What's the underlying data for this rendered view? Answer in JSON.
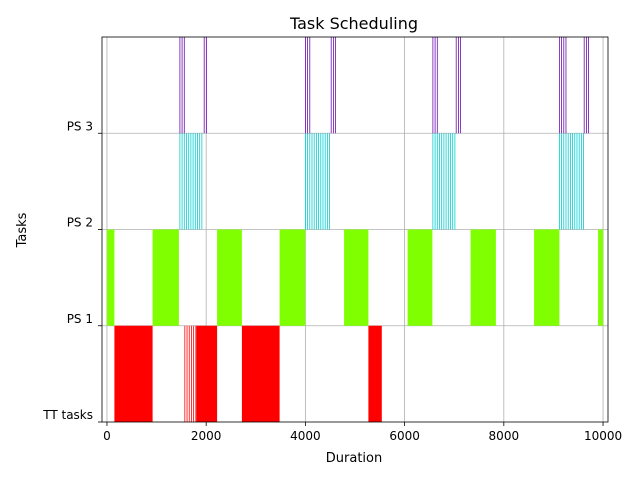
{
  "chart_data": {
    "type": "gantt",
    "title": "Task Scheduling",
    "xlabel": "Duration",
    "ylabel": "Tasks",
    "xlim": [
      -100,
      10100
    ],
    "x_ticks": [
      0,
      2000,
      4000,
      6000,
      8000,
      10000
    ],
    "x_tick_labels": [
      "0",
      "2000",
      "4000",
      "6000",
      "8000",
      "10000"
    ],
    "grid": true,
    "rows": [
      {
        "label": "TT tasks",
        "color": "#ff0000",
        "segments": [
          [
            150,
            920
          ],
          [
            1570,
            1800
          ],
          [
            1800,
            2220
          ],
          [
            2720,
            3480
          ],
          [
            5270,
            5540
          ]
        ],
        "hatched": [
          1570,
          1820
        ]
      },
      {
        "label": "PS 1",
        "color": "#7fff00",
        "segments": [
          [
            0,
            150
          ],
          [
            920,
            1450
          ],
          [
            2220,
            2720
          ],
          [
            3480,
            4000
          ],
          [
            4780,
            5270
          ],
          [
            6060,
            6560
          ],
          [
            7330,
            7840
          ],
          [
            8610,
            9120
          ],
          [
            9900,
            10000
          ]
        ]
      },
      {
        "label": "PS 2",
        "color": "#00ced1",
        "segments": [
          [
            1470,
            1930
          ],
          [
            4000,
            4500
          ],
          [
            6570,
            7040
          ],
          [
            9120,
            9630
          ]
        ],
        "hatched_all": true
      },
      {
        "label": "PS 3",
        "color": "#6a0dad",
        "segments": [
          [
            1470,
            1560
          ],
          [
            1960,
            2040
          ],
          [
            4000,
            4090
          ],
          [
            4520,
            4620
          ],
          [
            6570,
            6660
          ],
          [
            7040,
            7170
          ],
          [
            9120,
            9260
          ],
          [
            9620,
            9720
          ]
        ],
        "hatched_all": true
      }
    ]
  }
}
